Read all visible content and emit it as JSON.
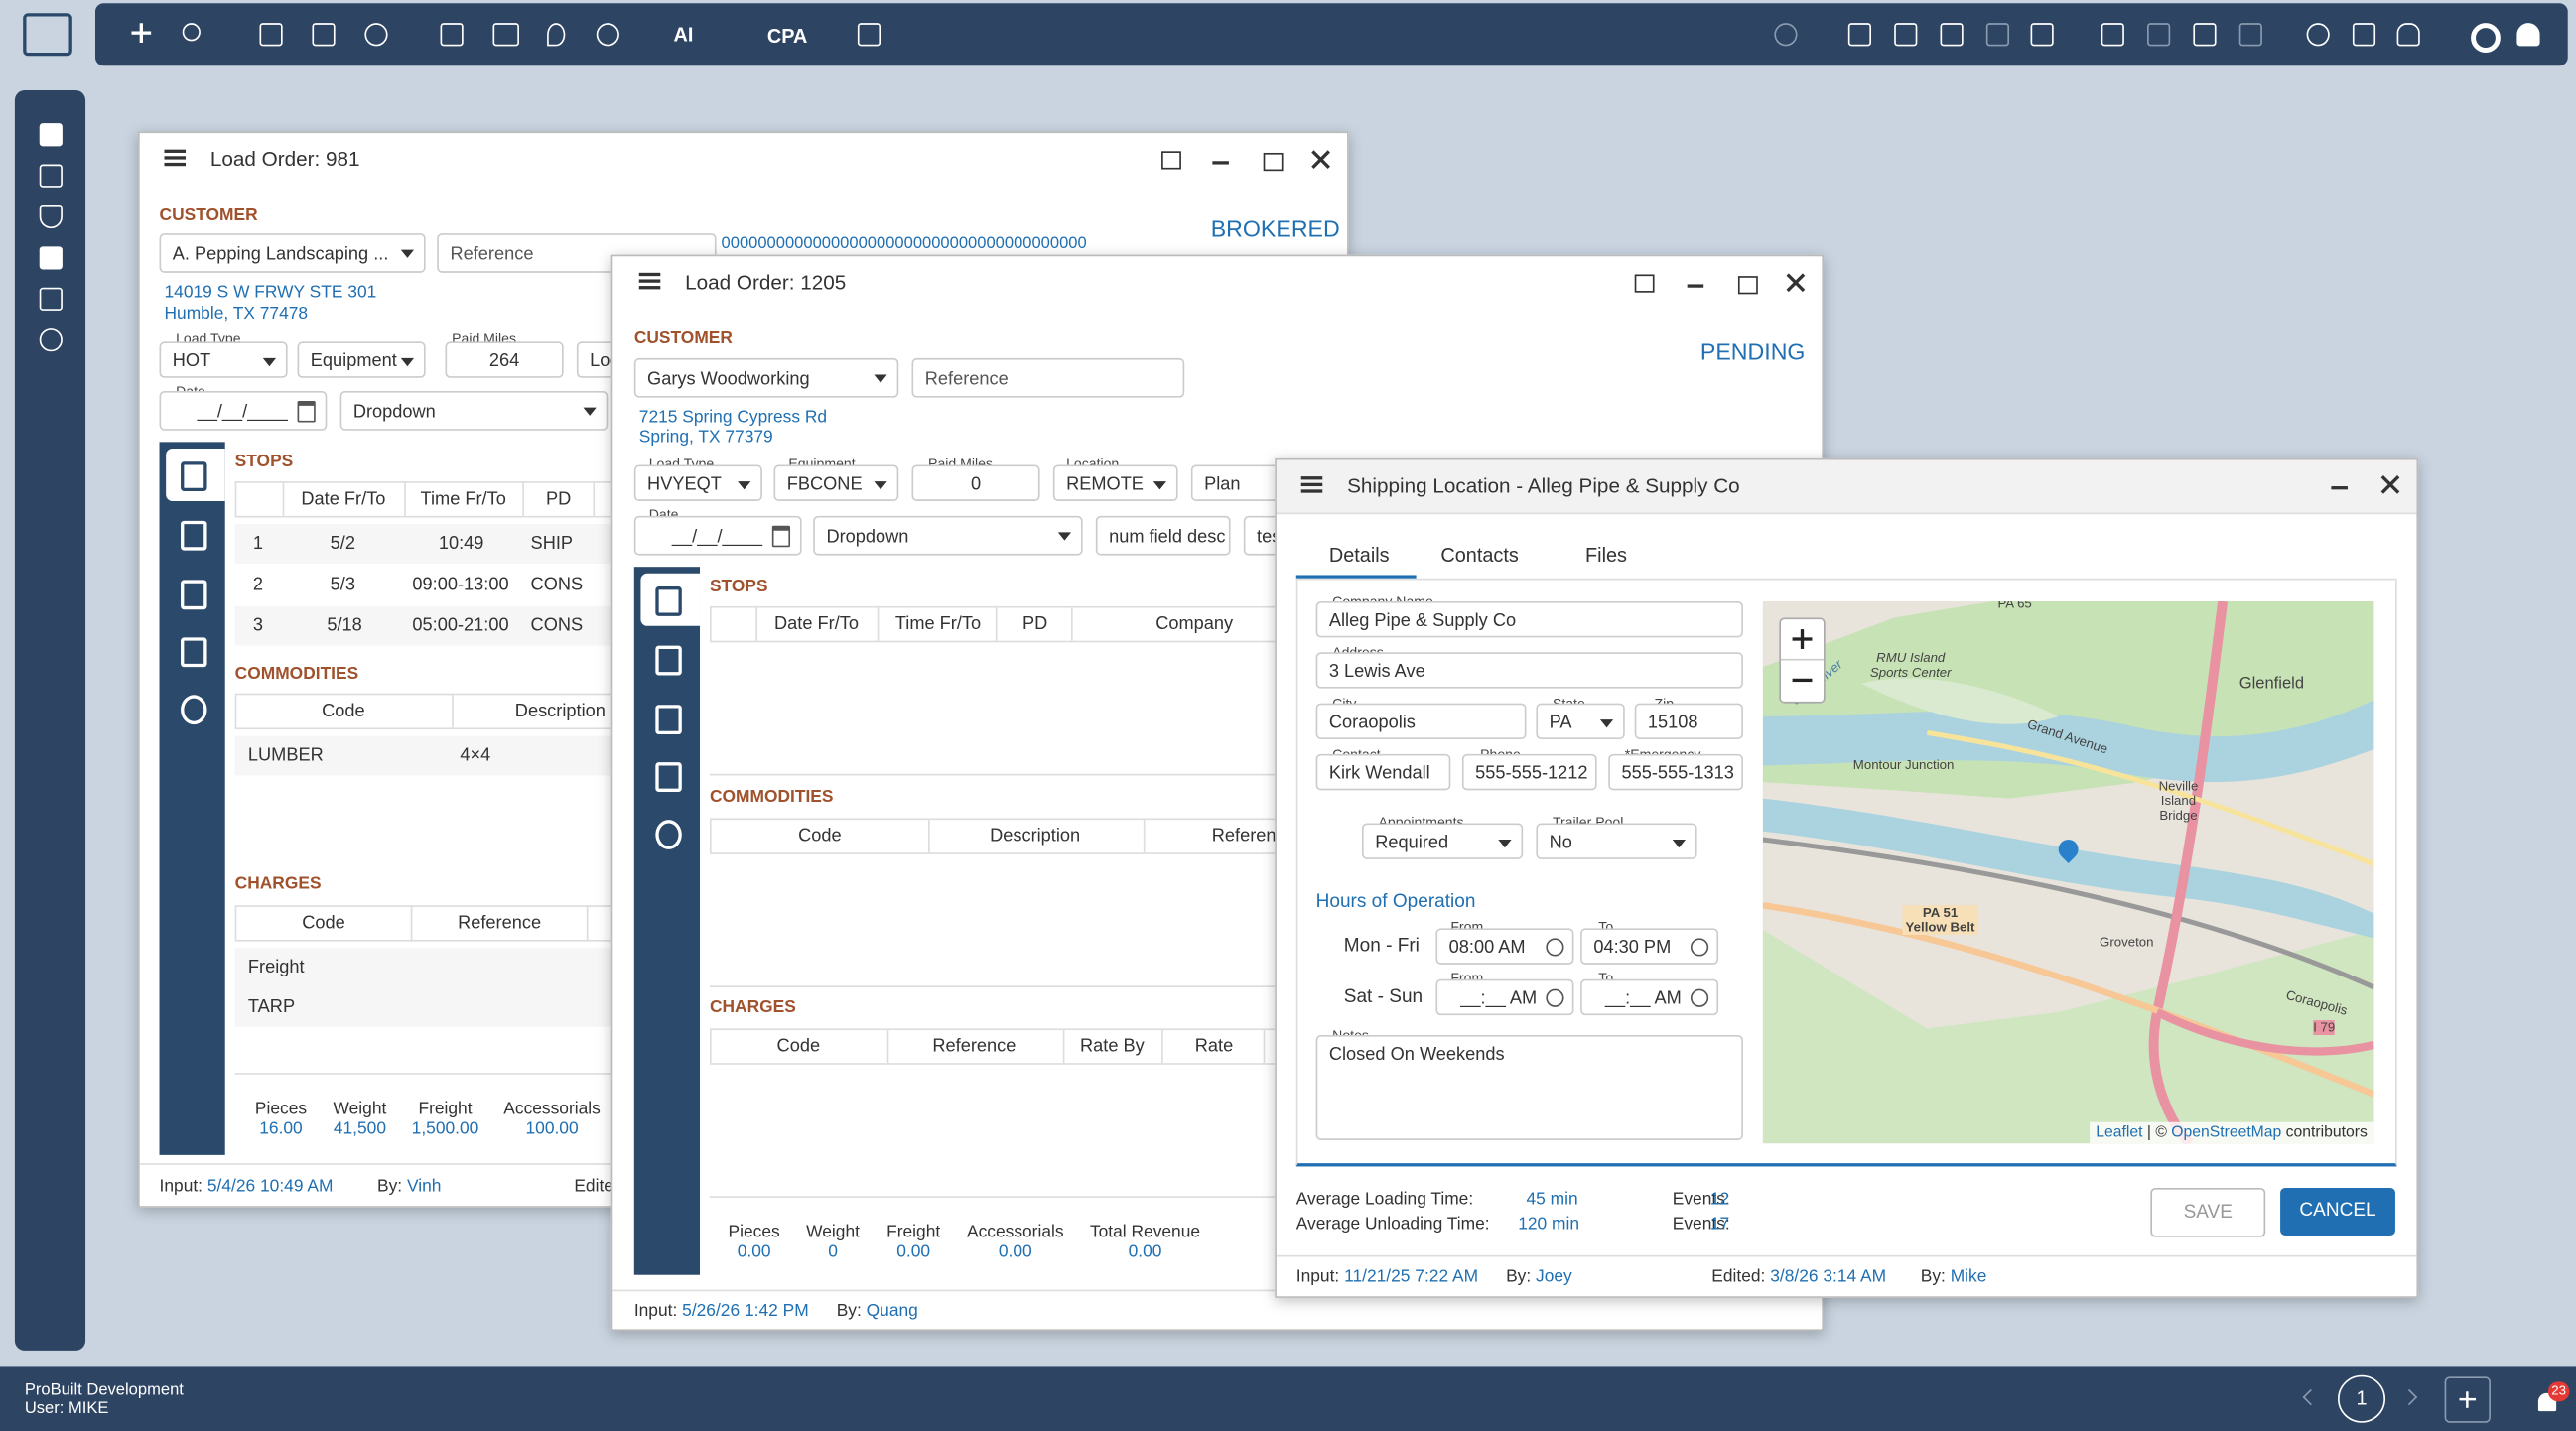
{
  "toolbar": {
    "ai": "AI",
    "cpa": "CPA"
  },
  "load_981": {
    "title": "Load Order: 981",
    "customer_label": "CUSTOMER",
    "customer": "A. Pepping Landscaping ...",
    "reference": "Reference",
    "reference_value": "0000000000000000000000000000000000000000",
    "status": "BROKERED",
    "address": [
      "14019 S W FRWY STE 301",
      "Humble, TX 77478"
    ],
    "load_type_label": "Load Type",
    "load_type": "HOT",
    "equipment": "Equipment",
    "paid_miles_label": "Paid Miles",
    "paid_miles": "264",
    "location": "Loc",
    "date_label": "Date",
    "date": "__/__/____",
    "dropdown": "Dropdown",
    "stops": {
      "title": "STOPS",
      "headers": [
        "Date Fr/To",
        "Time Fr/To",
        "PD"
      ],
      "rows": [
        [
          "1",
          "5/2",
          "10:49",
          "SHIP"
        ],
        [
          "2",
          "5/3",
          "09:00-13:00",
          "CONS"
        ],
        [
          "3",
          "5/18",
          "05:00-21:00",
          "CONS"
        ]
      ]
    },
    "commodities": {
      "title": "COMMODITIES",
      "headers": [
        "Code",
        "Description"
      ],
      "rows": [
        [
          "LUMBER",
          "4×4"
        ]
      ]
    },
    "charges": {
      "title": "CHARGES",
      "headers": [
        "Code",
        "Reference"
      ],
      "rows": [
        [
          "Freight"
        ],
        [
          "TARP"
        ]
      ]
    },
    "totals": [
      {
        "label": "Pieces",
        "value": "16.00"
      },
      {
        "label": "Weight",
        "value": "41,500"
      },
      {
        "label": "Freight",
        "value": "1,500.00"
      },
      {
        "label": "Accessorials",
        "value": "100.00"
      }
    ],
    "footer": {
      "input_label": "Input:",
      "input": "5/4/26 10:49 AM",
      "by_label": "By:",
      "by": "Vinh",
      "edited_label": "Edited:"
    }
  },
  "load_1205": {
    "title": "Load Order: 1205",
    "customer_label": "CUSTOMER",
    "customer": "Garys Woodworking",
    "reference": "Reference",
    "status": "PENDING",
    "address": [
      "7215 Spring Cypress Rd",
      "Spring, TX 77379"
    ],
    "load_type_label": "Load Type",
    "load_type": "HVYEQT",
    "equipment_label": "Equipment",
    "equipment": "FBCONE",
    "paid_miles_label": "Paid Miles",
    "paid_miles": "0",
    "location_label": "Location",
    "location": "REMOTE",
    "plan": "Plan",
    "date_label": "Date",
    "date": "__/__/____",
    "dropdown": "Dropdown",
    "num_field": "num field desc",
    "test_field": "tes",
    "stops": {
      "title": "STOPS",
      "headers": [
        "Date Fr/To",
        "Time Fr/To",
        "PD",
        "Company"
      ]
    },
    "commodities": {
      "title": "COMMODITIES",
      "headers": [
        "Code",
        "Description",
        "Reference"
      ]
    },
    "charges": {
      "title": "CHARGES",
      "headers": [
        "Code",
        "Reference",
        "Rate By",
        "Rate"
      ]
    },
    "totals": [
      {
        "label": "Pieces",
        "value": "0.00"
      },
      {
        "label": "Weight",
        "value": "0"
      },
      {
        "label": "Freight",
        "value": "0.00"
      },
      {
        "label": "Accessorials",
        "value": "0.00"
      },
      {
        "label": "Total Revenue",
        "value": "0.00"
      }
    ],
    "footer": {
      "input_label": "Input:",
      "input": "5/26/26 1:42 PM",
      "by_label": "By:",
      "by": "Quang"
    }
  },
  "shipping": {
    "title": "Shipping Location - Alleg Pipe & Supply Co",
    "tabs": [
      "Details",
      "Contacts",
      "Files"
    ],
    "company_label": "Company Name",
    "company": "Alleg Pipe & Supply Co",
    "address_label": "Address",
    "address": "3 Lewis Ave",
    "city_label": "City",
    "city": "Coraopolis",
    "state_label": "State",
    "state": "PA",
    "zip_label": "Zip",
    "zip": "15108",
    "contact_label": "Contact",
    "contact": "Kirk Wendall",
    "phone_label": "Phone",
    "phone": "555-555-1212",
    "emergency_label": "*Emergency",
    "emergency": "555-555-1313",
    "appointments_label": "Appointments",
    "appointments": "Required",
    "trailer_label": "Trailer Pool",
    "trailer": "No",
    "hours_title": "Hours of Operation",
    "from_label": "From",
    "to_label": "To",
    "hours": [
      {
        "day": "Mon - Fri",
        "from": "08:00 AM",
        "to": "04:30 PM"
      },
      {
        "day": "Sat - Sun",
        "from": "__:__ AM",
        "to": "__:__ AM"
      }
    ],
    "notes_label": "Notes",
    "notes": "Closed On Weekends",
    "map_labels": [
      "PA 65",
      "RMU Island Sports Center",
      "Glenfield",
      "Grand Avenue",
      "Montour Junction",
      "Ohio River",
      "Neville Island Bridge",
      "PA 51 Yellow Belt",
      "Groveton",
      "Coraopolis",
      "I 79"
    ],
    "attribution": {
      "leaflet": "Leaflet",
      "osm": "OpenStreetMap",
      "rest": "contributors"
    },
    "stats": [
      {
        "label": "Average Loading Time:",
        "value": "45 min",
        "events_label": "Events:",
        "events": "12"
      },
      {
        "label": "Average Unloading Time:",
        "value": "120 min",
        "events_label": "Events:",
        "events": "17"
      }
    ],
    "save": "SAVE",
    "cancel": "CANCEL",
    "footer": {
      "input_label": "Input:",
      "input": "11/21/25 7:22 AM",
      "by_label": "By:",
      "by": "Joey",
      "edited_label": "Edited:",
      "edited": "3/8/26 3:14 AM",
      "by2_label": "By:",
      "by2": "Mike"
    }
  },
  "status_bar": {
    "company": "ProBuilt Development",
    "user": "User: MIKE",
    "page": "1",
    "notifications": "23"
  }
}
